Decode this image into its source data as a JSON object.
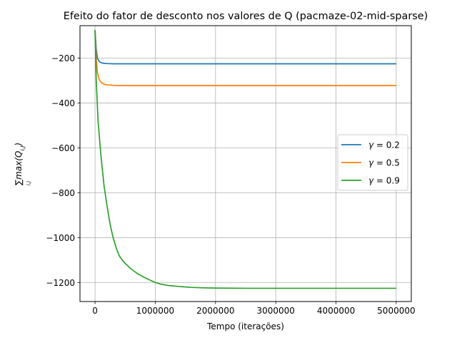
{
  "chart_data": {
    "type": "line",
    "title": "Efeito do fator de desconto nos valores de Q (pacmaze-02-mid-sparse)",
    "xlabel": "Tempo (iterações)",
    "ylabel": "∑max(Q",
    "ylabel_sub": "i,j",
    "ylabel_sub2": "i,j",
    "ylabel_close": ")",
    "xlim": [
      -250000,
      5250000
    ],
    "ylim": [
      -1285,
      -55
    ],
    "xticks": [
      0,
      1000000,
      2000000,
      3000000,
      4000000,
      5000000
    ],
    "xtick_labels": [
      "0",
      "1000000",
      "2000000",
      "3000000",
      "4000000",
      "5000000"
    ],
    "yticks": [
      -200,
      -400,
      -600,
      -800,
      -1000,
      -1200
    ],
    "ytick_labels": [
      "−200",
      "−400",
      "−600",
      "−800",
      "−1000",
      "−1200"
    ],
    "grid": true,
    "legend_position": "center-right",
    "series": [
      {
        "name": "γ = 0.2",
        "name_symbol": "γ",
        "name_rest": " = 0.2",
        "color": "#1f77b4",
        "x": [
          0,
          20000,
          40000,
          70000,
          100000,
          150000,
          200000,
          300000,
          500000,
          1000000,
          2000000,
          3000000,
          4000000,
          5000000
        ],
        "y": [
          -75,
          -160,
          -200,
          -215,
          -220,
          -223,
          -224,
          -225,
          -225,
          -225,
          -225,
          -225,
          -225,
          -225
        ]
      },
      {
        "name": "γ = 0.5",
        "name_symbol": "γ",
        "name_rest": " = 0.5",
        "color": "#ff7f0e",
        "x": [
          0,
          20000,
          40000,
          70000,
          100000,
          150000,
          200000,
          300000,
          400000,
          500000,
          1000000,
          2000000,
          3000000,
          4000000,
          5000000
        ],
        "y": [
          -75,
          -200,
          -265,
          -295,
          -308,
          -316,
          -319,
          -321,
          -322,
          -322,
          -322,
          -322,
          -322,
          -322,
          -322
        ]
      },
      {
        "name": "γ = 0.9",
        "name_symbol": "γ",
        "name_rest": " = 0.9",
        "color": "#2ca02c",
        "x": [
          0,
          20000,
          50000,
          100000,
          150000,
          200000,
          250000,
          300000,
          350000,
          400000,
          450000,
          500000,
          600000,
          700000,
          800000,
          900000,
          1000000,
          1100000,
          1200000,
          1400000,
          1600000,
          1800000,
          2000000,
          2500000,
          3000000,
          3500000,
          4000000,
          4500000,
          5000000
        ],
        "y": [
          -75,
          -300,
          -480,
          -640,
          -770,
          -860,
          -940,
          -1000,
          -1045,
          -1080,
          -1100,
          -1115,
          -1140,
          -1160,
          -1175,
          -1188,
          -1200,
          -1208,
          -1213,
          -1218,
          -1222,
          -1224,
          -1225,
          -1226,
          -1226,
          -1226,
          -1226,
          -1226,
          -1226
        ]
      }
    ]
  }
}
